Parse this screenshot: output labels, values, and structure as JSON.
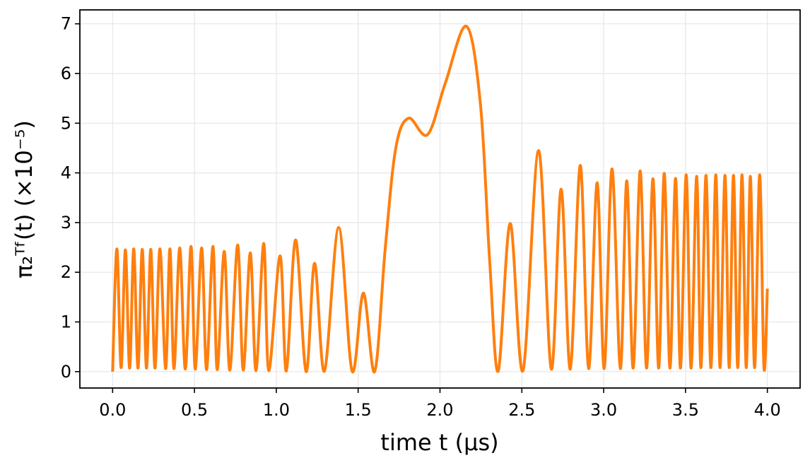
{
  "chart_data": {
    "type": "line",
    "xlabel": "time t (μs)",
    "ylabel": "π₂ᵀᶠ(t)  (×10⁻⁵)",
    "xlim": [
      -0.2,
      4.2
    ],
    "ylim": [
      -0.33,
      7.28
    ],
    "xticks": [
      {
        "value": 0,
        "label": "0.0"
      },
      0.5,
      {
        "value": 1,
        "label": "1.0"
      },
      1.5,
      {
        "value": 2,
        "label": "2.0"
      },
      2.5,
      {
        "value": 3,
        "label": "3.0"
      },
      3.5,
      {
        "value": 4,
        "label": "4.0"
      }
    ],
    "yticks": [
      0,
      1,
      2,
      3,
      4,
      5,
      6,
      7
    ],
    "grid": true,
    "x": [
      0,
      0.026,
      0.052,
      0.078,
      0.104,
      0.129,
      0.155,
      0.181,
      0.207,
      0.233,
      0.259,
      0.289,
      0.324,
      0.35,
      0.375,
      0.41,
      0.444,
      0.479,
      0.505,
      0.544,
      0.574,
      0.613,
      0.639,
      0.682,
      0.716,
      0.764,
      0.798,
      0.841,
      0.876,
      0.923,
      0.954,
      1.023,
      1.061,
      1.118,
      1.182,
      1.234,
      1.294,
      1.381,
      1.463,
      1.532,
      1.601,
      1.666,
      1.73,
      1.808,
      1.924,
      2.032,
      2.162,
      2.248,
      2.304,
      2.356,
      2.429,
      2.507,
      2.602,
      2.68,
      2.74,
      2.796,
      2.857,
      2.908,
      2.96,
      3.003,
      3.051,
      3.102,
      3.141,
      3.18,
      3.223,
      3.262,
      3.301,
      3.336,
      3.37,
      3.405,
      3.439,
      3.469,
      3.504,
      3.534,
      3.568,
      3.594,
      3.625,
      3.655,
      3.685,
      3.711,
      3.741,
      3.767,
      3.793,
      3.819,
      3.845,
      3.871,
      3.896,
      3.922,
      3.953,
      3.979,
      4.0
    ],
    "series": [
      {
        "color": "#ff7f0e",
        "values": [
          0,
          2.47,
          0.08,
          2.45,
          0.07,
          2.47,
          0.07,
          2.46,
          0.07,
          2.46,
          0.07,
          2.47,
          0.06,
          2.47,
          0.06,
          2.49,
          0.05,
          2.52,
          0.05,
          2.49,
          0.04,
          2.52,
          0.04,
          2.42,
          0.03,
          2.55,
          0.03,
          2.39,
          0.02,
          2.58,
          0.02,
          2.33,
          0.01,
          2.65,
          0,
          2.18,
          0.01,
          2.9,
          0.01,
          1.58,
          0,
          2.5,
          4.5,
          5.1,
          4.77,
          5.8,
          6.95,
          5.35,
          2.2,
          0.01,
          2.98,
          0.02,
          4.45,
          0.05,
          3.67,
          0.05,
          4.15,
          0.06,
          3.8,
          0.06,
          4.08,
          0.06,
          3.84,
          0.07,
          4.04,
          0.07,
          3.88,
          0.07,
          3.99,
          0.07,
          3.89,
          0.07,
          3.96,
          0.07,
          3.93,
          0.08,
          3.95,
          0.08,
          3.96,
          0.08,
          3.95,
          0.08,
          3.95,
          0.08,
          3.96,
          0.08,
          3.93,
          0.08,
          3.96,
          0.08,
          1.67
        ]
      }
    ]
  }
}
